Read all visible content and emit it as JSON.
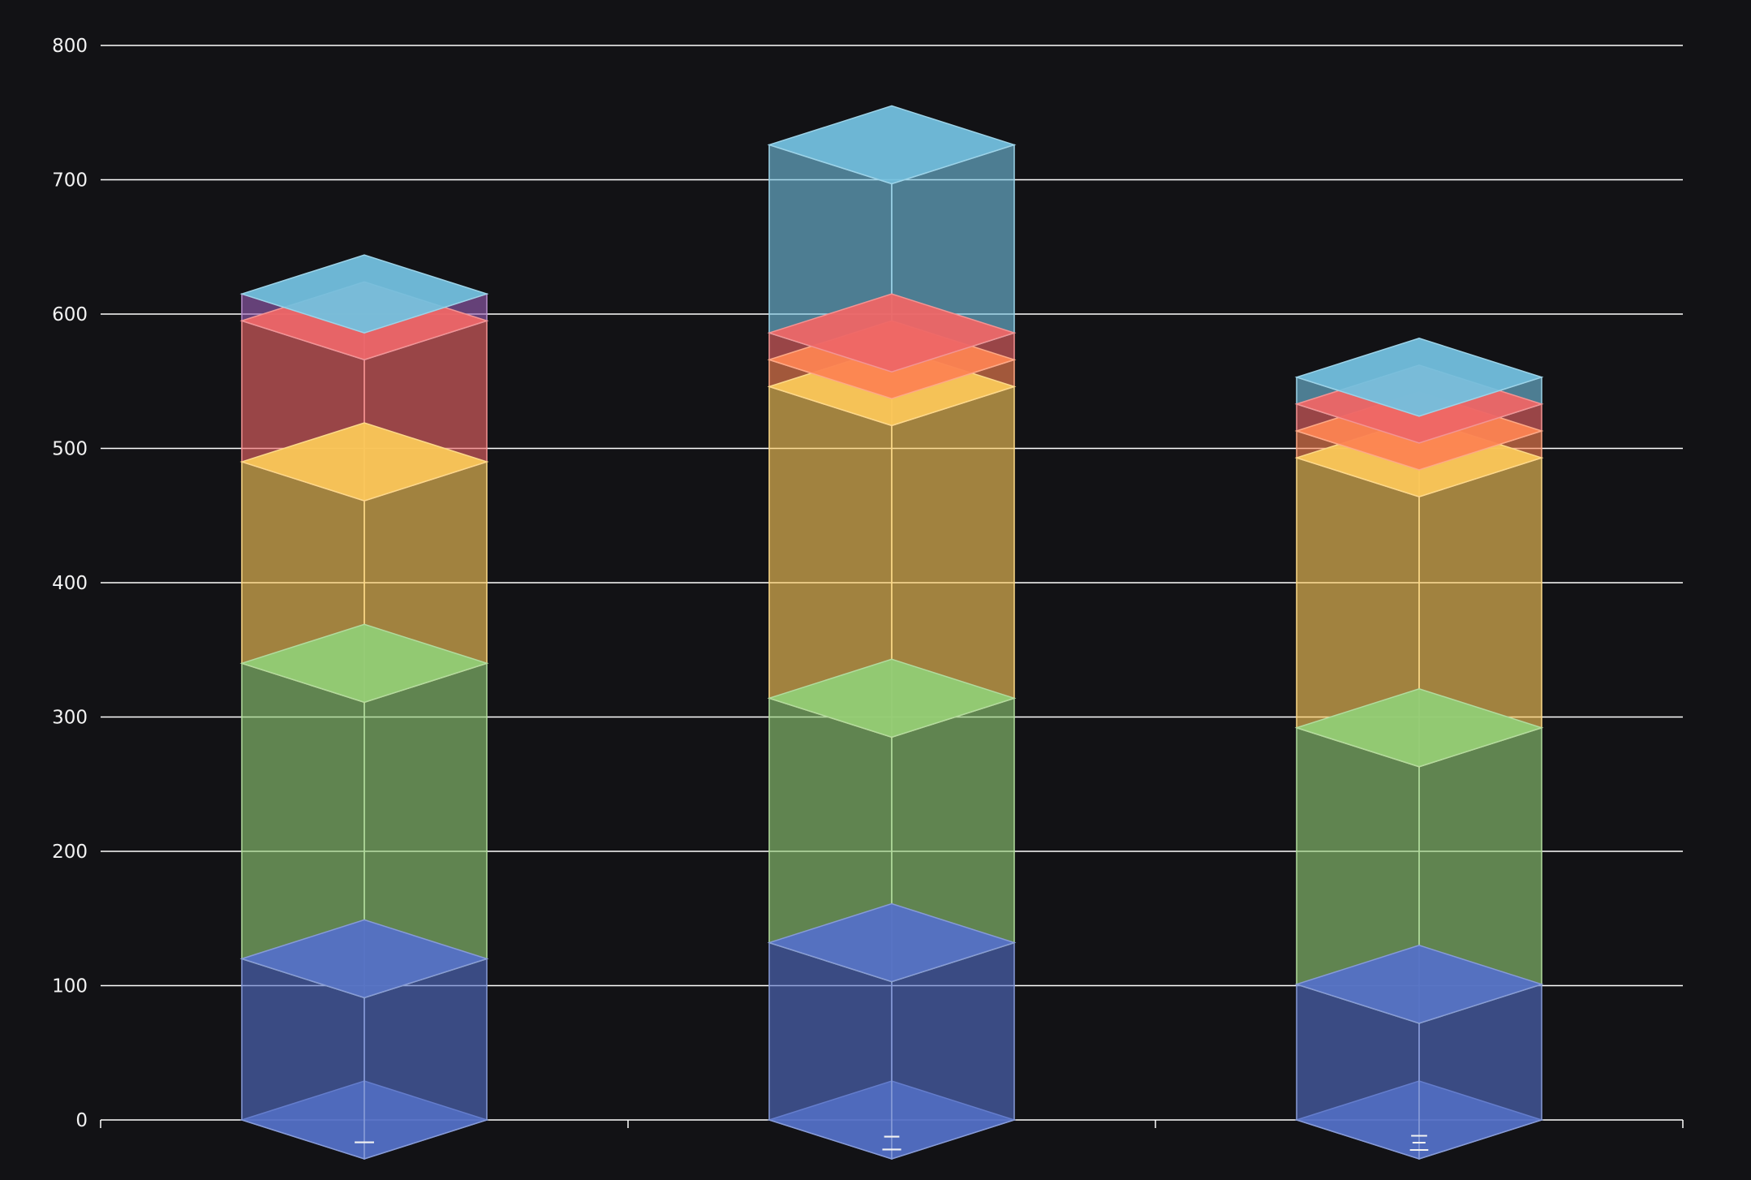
{
  "chart_data": {
    "type": "bar",
    "style": "3d-stacked-column",
    "categories": [
      "一",
      "二",
      "三"
    ],
    "series": [
      {
        "values": [
          120,
          132,
          101
        ],
        "color": "#5470c6"
      },
      {
        "values": [
          220,
          182,
          191
        ],
        "color": "#91cc75"
      },
      {
        "values": [
          150,
          232,
          201
        ],
        "color": "#fac858"
      },
      {
        "values": [
          0,
          0,
          0
        ],
        "color": "#ee6666"
      },
      {
        "values": [
          0,
          20,
          20
        ],
        "color": "#fc8452"
      },
      {
        "values": [
          105,
          20,
          20
        ],
        "color": "#ee6666"
      },
      {
        "values": [
          20,
          0,
          0
        ],
        "color": "#9a60b4"
      },
      {
        "values": [
          0,
          140,
          20
        ],
        "color": "#73c0de"
      }
    ],
    "yticks": [
      "0",
      "100",
      "200",
      "300",
      "400",
      "500",
      "600",
      "700",
      "800"
    ],
    "ylim": [
      0,
      800
    ],
    "grid": true,
    "legend": "none",
    "background": "#121215",
    "top_color": "#73c0de",
    "axis_color": "#ffffff"
  }
}
